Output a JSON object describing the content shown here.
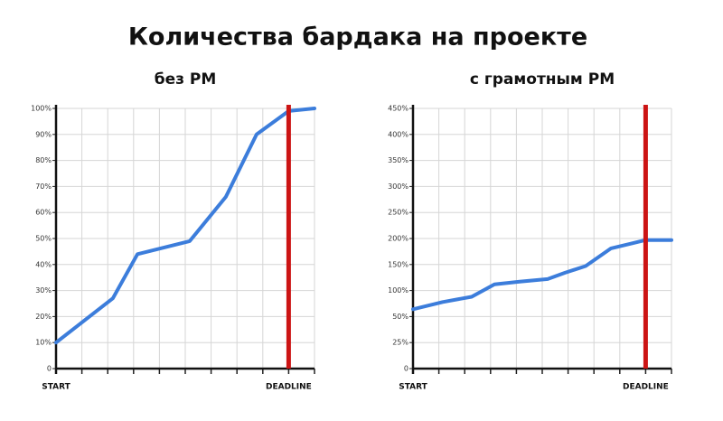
{
  "title": "Количества бардака на проекте",
  "chart_data": [
    {
      "type": "line",
      "title": "без PM",
      "color": "#3c7ddb",
      "x": [
        0,
        2.2,
        3.15,
        5.17,
        6.57,
        7.76,
        9.0,
        10
      ],
      "values": [
        10,
        27,
        44,
        49,
        66,
        90,
        99,
        100
      ],
      "xlim": [
        0,
        10
      ],
      "xticks": [
        {
          "value": 0,
          "label": "START"
        },
        {
          "value": 1,
          "label": null
        },
        {
          "value": 2,
          "label": null
        },
        {
          "value": 3,
          "label": null
        },
        {
          "value": 4,
          "label": null
        },
        {
          "value": 5,
          "label": null
        },
        {
          "value": 6,
          "label": null
        },
        {
          "value": 7,
          "label": null
        },
        {
          "value": 8,
          "label": null
        },
        {
          "value": 9,
          "label": "DEADLINE"
        },
        {
          "value": 10,
          "label": null
        }
      ],
      "ylim": [
        0,
        100
      ],
      "yticks": [
        0,
        {
          "value": 10,
          "label": "10%"
        },
        {
          "value": 20,
          "label": "20%"
        },
        {
          "value": 30,
          "label": "30%"
        },
        {
          "value": 40,
          "label": "40%"
        },
        {
          "value": 50,
          "label": "50%"
        },
        {
          "value": 60,
          "label": "60%"
        },
        {
          "value": 70,
          "label": "70%"
        },
        {
          "value": 80,
          "label": "80%"
        },
        {
          "value": 90,
          "label": "90%"
        },
        {
          "value": 100,
          "label": "100%"
        }
      ],
      "grid": true,
      "markers": [
        {
          "x": 9,
          "color": "#cc1414"
        }
      ]
    },
    {
      "type": "line",
      "title": "с грамотным PM",
      "color": "#3c7ddb",
      "x": [
        0,
        1.15,
        2.27,
        3.15,
        4.13,
        5.21,
        5.87,
        6.68,
        7.66,
        8.5,
        9.0,
        10
      ],
      "values": [
        64,
        78,
        88,
        112,
        117,
        122,
        134,
        147,
        181,
        191,
        197,
        197
      ],
      "xlim": [
        0,
        10
      ],
      "xticks": [
        {
          "value": 0,
          "label": "START"
        },
        {
          "value": 1,
          "label": null
        },
        {
          "value": 2,
          "label": null
        },
        {
          "value": 3,
          "label": null
        },
        {
          "value": 4,
          "label": null
        },
        {
          "value": 5,
          "label": null
        },
        {
          "value": 6,
          "label": null
        },
        {
          "value": 7,
          "label": null
        },
        {
          "value": 8,
          "label": null
        },
        {
          "value": 9,
          "label": "DEADLINE"
        },
        {
          "value": 10,
          "label": null
        }
      ],
      "ylim": [
        0,
        450
      ],
      "yticks": [
        0,
        {
          "value": 25,
          "label": "25%"
        },
        {
          "value": 50,
          "label": "50%"
        },
        {
          "value": 100,
          "label": "100%"
        },
        {
          "value": 150,
          "label": "150%"
        },
        {
          "value": 200,
          "label": "200%"
        },
        {
          "value": 250,
          "label": "250%"
        },
        {
          "value": 300,
          "label": "300%"
        },
        {
          "value": 350,
          "label": "350%"
        },
        {
          "value": 400,
          "label": "400%"
        },
        {
          "value": 450,
          "label": "450%"
        }
      ],
      "grid": true,
      "markers": [
        {
          "x": 9,
          "color": "#cc1414"
        }
      ]
    }
  ]
}
